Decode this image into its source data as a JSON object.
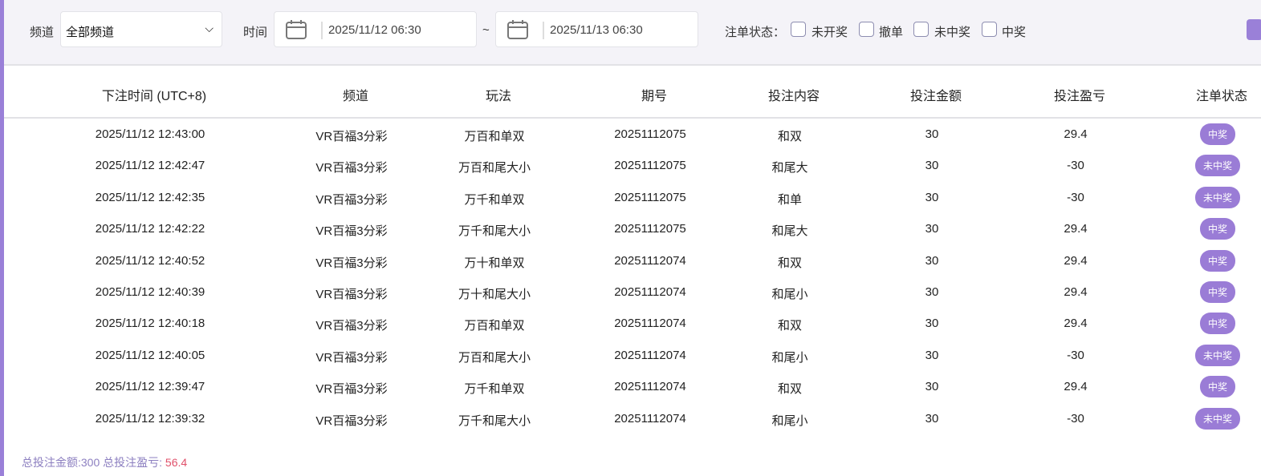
{
  "filters": {
    "channel_label": "频道",
    "channel_value": "全部频道",
    "time_label": "时间",
    "start": "2025/11/12 06:30",
    "tilde": "~",
    "end": "2025/11/13 06:30",
    "status_label": "注单状态：",
    "statuses": [
      "未开奖",
      "撤单",
      "未中奖",
      "中奖"
    ]
  },
  "table": {
    "headers": [
      "下注时间 (UTC+8)",
      "频道",
      "玩法",
      "期号",
      "投注内容",
      "投注金额",
      "投注盈亏",
      "注单状态"
    ],
    "rows": [
      [
        "2025/11/12 12:43:00",
        "VR百福3分彩",
        "万百和单双",
        "20251112075",
        "和双",
        "30",
        "29.4",
        "中奖"
      ],
      [
        "2025/11/12 12:42:47",
        "VR百福3分彩",
        "万百和尾大小",
        "20251112075",
        "和尾大",
        "30",
        "-30",
        "未中奖"
      ],
      [
        "2025/11/12 12:42:35",
        "VR百福3分彩",
        "万千和单双",
        "20251112075",
        "和单",
        "30",
        "-30",
        "未中奖"
      ],
      [
        "2025/11/12 12:42:22",
        "VR百福3分彩",
        "万千和尾大小",
        "20251112075",
        "和尾大",
        "30",
        "29.4",
        "中奖"
      ],
      [
        "2025/11/12 12:40:52",
        "VR百福3分彩",
        "万十和单双",
        "20251112074",
        "和双",
        "30",
        "29.4",
        "中奖"
      ],
      [
        "2025/11/12 12:40:39",
        "VR百福3分彩",
        "万十和尾大小",
        "20251112074",
        "和尾小",
        "30",
        "29.4",
        "中奖"
      ],
      [
        "2025/11/12 12:40:18",
        "VR百福3分彩",
        "万百和单双",
        "20251112074",
        "和双",
        "30",
        "29.4",
        "中奖"
      ],
      [
        "2025/11/12 12:40:05",
        "VR百福3分彩",
        "万百和尾大小",
        "20251112074",
        "和尾小",
        "30",
        "-30",
        "未中奖"
      ],
      [
        "2025/11/12 12:39:47",
        "VR百福3分彩",
        "万千和单双",
        "20251112074",
        "和双",
        "30",
        "29.4",
        "中奖"
      ],
      [
        "2025/11/12 12:39:32",
        "VR百福3分彩",
        "万千和尾大小",
        "20251112074",
        "和尾小",
        "30",
        "-30",
        "未中奖"
      ]
    ]
  },
  "summary": {
    "total_amount_label": "总投注金额:300 总投注盈亏: ",
    "total_profit": "56.4"
  },
  "colors": {
    "accent": "#9a7cd6",
    "win": "#e0506a",
    "loss": "#3a9c74"
  }
}
